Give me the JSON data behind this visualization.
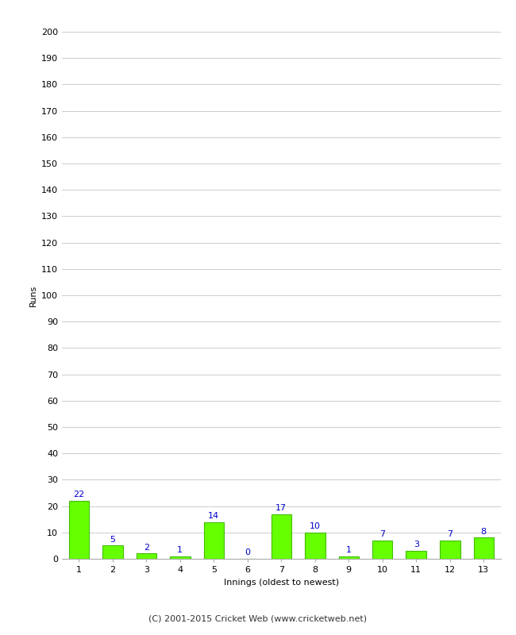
{
  "xlabel": "Innings (oldest to newest)",
  "ylabel": "Runs",
  "categories": [
    "1",
    "2",
    "3",
    "4",
    "5",
    "6",
    "7",
    "8",
    "9",
    "10",
    "11",
    "12",
    "13"
  ],
  "values": [
    22,
    5,
    2,
    1,
    14,
    0,
    17,
    10,
    1,
    7,
    3,
    7,
    8
  ],
  "bar_color": "#66ff00",
  "bar_edge_color": "#44bb00",
  "label_color": "#0000cc",
  "ylim": [
    0,
    200
  ],
  "yticks": [
    0,
    10,
    20,
    30,
    40,
    50,
    60,
    70,
    80,
    90,
    100,
    110,
    120,
    130,
    140,
    150,
    160,
    170,
    180,
    190,
    200
  ],
  "background_color": "#ffffff",
  "grid_color": "#cccccc",
  "footer": "(C) 2001-2015 Cricket Web (www.cricketweb.net)",
  "label_fontsize": 8,
  "axis_label_fontsize": 8,
  "tick_fontsize": 8,
  "footer_fontsize": 8
}
